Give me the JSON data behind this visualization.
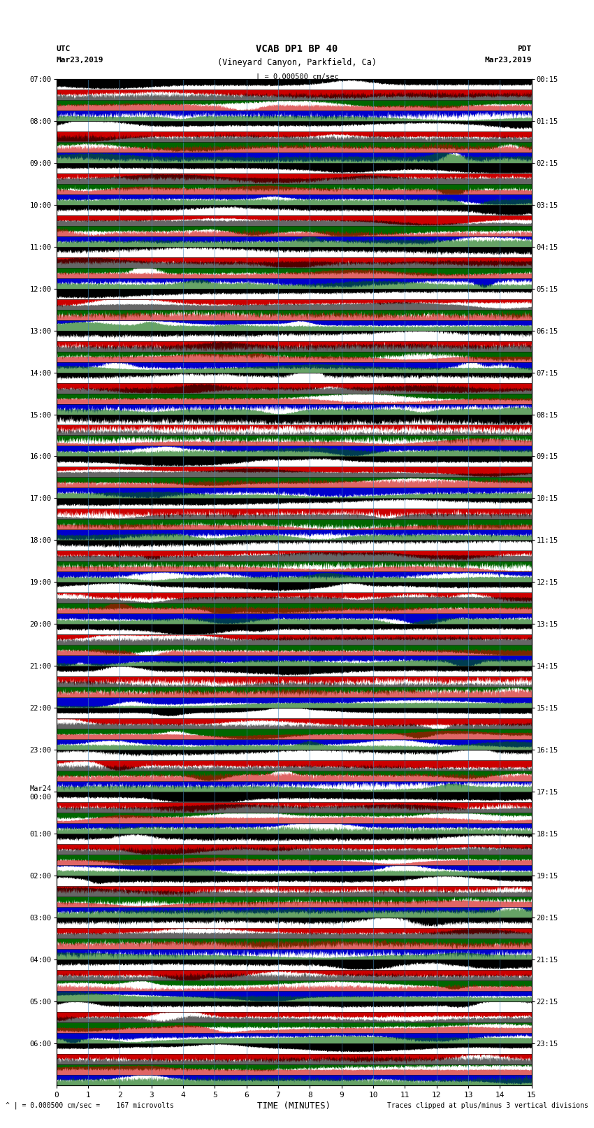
{
  "title_line1": "VCAB DP1 BP 40",
  "title_line2": "(Vineyard Canyon, Parkfield, Ca)",
  "scale_text": "| = 0.000500 cm/sec",
  "utc_label": "UTC",
  "utc_date": "Mar23,2019",
  "pdt_label": "PDT",
  "pdt_date": "Mar23,2019",
  "xlabel": "TIME (MINUTES)",
  "footer_left": "^ | = 0.000500 cm/sec =    167 microvolts",
  "footer_right": "Traces clipped at plus/minus 3 vertical divisions",
  "xlim": [
    0,
    15
  ],
  "xticks": [
    0,
    1,
    2,
    3,
    4,
    5,
    6,
    7,
    8,
    9,
    10,
    11,
    12,
    13,
    14,
    15
  ],
  "utc_times_labeled": [
    "07:00",
    "08:00",
    "09:00",
    "10:00",
    "11:00",
    "12:00",
    "13:00",
    "14:00",
    "15:00",
    "16:00",
    "17:00",
    "18:00",
    "19:00",
    "20:00",
    "21:00",
    "22:00",
    "23:00",
    "Mar24\n00:00",
    "01:00",
    "02:00",
    "03:00",
    "04:00",
    "05:00",
    "06:00"
  ],
  "pdt_times_labeled": [
    "00:15",
    "01:15",
    "02:15",
    "03:15",
    "04:15",
    "05:15",
    "06:15",
    "07:15",
    "08:15",
    "09:15",
    "10:15",
    "11:15",
    "12:15",
    "13:15",
    "14:15",
    "15:15",
    "16:15",
    "17:15",
    "18:15",
    "19:15",
    "20:15",
    "21:15",
    "22:15",
    "23:15"
  ],
  "n_rows": 24,
  "n_subbands": 4,
  "colors_cycle": [
    "#000000",
    "#cc0000",
    "#006600",
    "#0000cc"
  ],
  "bg_color": "white",
  "seed": 42
}
